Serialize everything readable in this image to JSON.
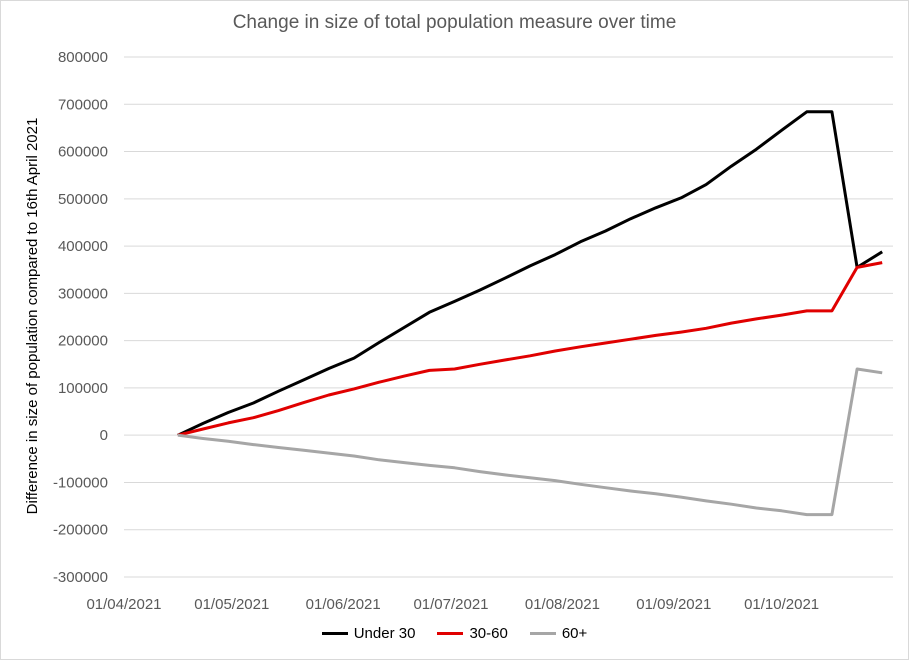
{
  "chart_data": {
    "type": "line",
    "title": "Change in size of total population measure over time",
    "xlabel": "",
    "ylabel": "Difference in size of population compared to 16th April 2021",
    "x_tick_labels": [
      "01/04/2021",
      "01/05/2021",
      "01/06/2021",
      "01/07/2021",
      "01/08/2021",
      "01/09/2021",
      "01/10/2021"
    ],
    "y_tick_labels": [
      "800000",
      "700000",
      "600000",
      "500000",
      "400000",
      "300000",
      "200000",
      "100000",
      "0",
      "-100000",
      "-200000",
      "-300000"
    ],
    "ylim": [
      -300000,
      800000
    ],
    "xlim": [
      "2021-04-01",
      "2021-11-01"
    ],
    "grid": "horizontal",
    "legend_position": "bottom",
    "x": [
      "2021-04-16",
      "2021-04-23",
      "2021-04-30",
      "2021-05-07",
      "2021-05-14",
      "2021-05-21",
      "2021-05-28",
      "2021-06-04",
      "2021-06-11",
      "2021-06-18",
      "2021-06-25",
      "2021-07-02",
      "2021-07-09",
      "2021-07-16",
      "2021-07-23",
      "2021-07-30",
      "2021-08-06",
      "2021-08-13",
      "2021-08-20",
      "2021-08-27",
      "2021-09-03",
      "2021-09-10",
      "2021-09-17",
      "2021-09-24",
      "2021-10-01",
      "2021-10-08",
      "2021-10-15",
      "2021-10-22",
      "2021-10-29"
    ],
    "series": [
      {
        "name": "Under 30",
        "color": "#000000",
        "values": [
          0,
          25000,
          48000,
          68000,
          93000,
          117000,
          141000,
          163000,
          196000,
          228000,
          260000,
          283000,
          307000,
          332000,
          358000,
          382000,
          409000,
          432000,
          458000,
          481000,
          502000,
          530000,
          569000,
          605000,
          645000,
          684000,
          684000,
          355000,
          388000
        ]
      },
      {
        "name": "30-60",
        "color": "#e00000",
        "values": [
          0,
          13000,
          26000,
          37000,
          52000,
          69000,
          85000,
          98000,
          112000,
          125000,
          137000,
          140000,
          150000,
          159000,
          168000,
          178000,
          187000,
          195000,
          203000,
          211000,
          218000,
          226000,
          237000,
          246000,
          254000,
          263000,
          263000,
          355000,
          365000
        ]
      },
      {
        "name": "60+",
        "color": "#a6a6a6",
        "values": [
          0,
          -7000,
          -13000,
          -20000,
          -26000,
          -32000,
          -38000,
          -44000,
          -52000,
          -58000,
          -64000,
          -69000,
          -77000,
          -84000,
          -90000,
          -96000,
          -104000,
          -111000,
          -118000,
          -124000,
          -131000,
          -139000,
          -146000,
          -154000,
          -160000,
          -168000,
          -168000,
          140000,
          132000
        ]
      }
    ]
  }
}
